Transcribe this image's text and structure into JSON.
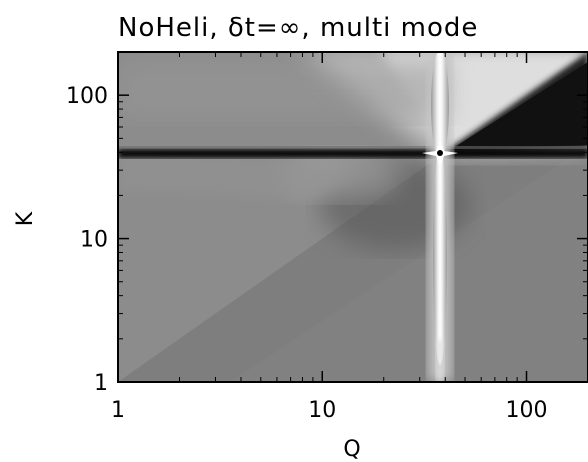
{
  "chart_data": {
    "type": "heatmap",
    "title": "NoHeli, δt=∞, multi mode",
    "xlabel": "Q",
    "ylabel": "K",
    "x_scale": "log",
    "y_scale": "log",
    "xlim": [
      1,
      200
    ],
    "ylim": [
      1,
      200
    ],
    "x_ticks": [
      {
        "value": 1,
        "label": "1"
      },
      {
        "value": 10,
        "label": "10"
      },
      {
        "value": 100,
        "label": "100"
      }
    ],
    "y_ticks": [
      {
        "value": 1,
        "label": "1"
      },
      {
        "value": 10,
        "label": "10"
      },
      {
        "value": 100,
        "label": "100"
      }
    ],
    "colormap": "grayscale",
    "forcing_scale": 38,
    "features": [
      {
        "kind": "horizontal_band",
        "at_K": 38,
        "shade": "black"
      },
      {
        "kind": "vertical_band",
        "at_Q": 38,
        "shade": "white"
      },
      {
        "kind": "diagonal_edge",
        "along": "Q=K",
        "shade_above": "black"
      }
    ]
  }
}
